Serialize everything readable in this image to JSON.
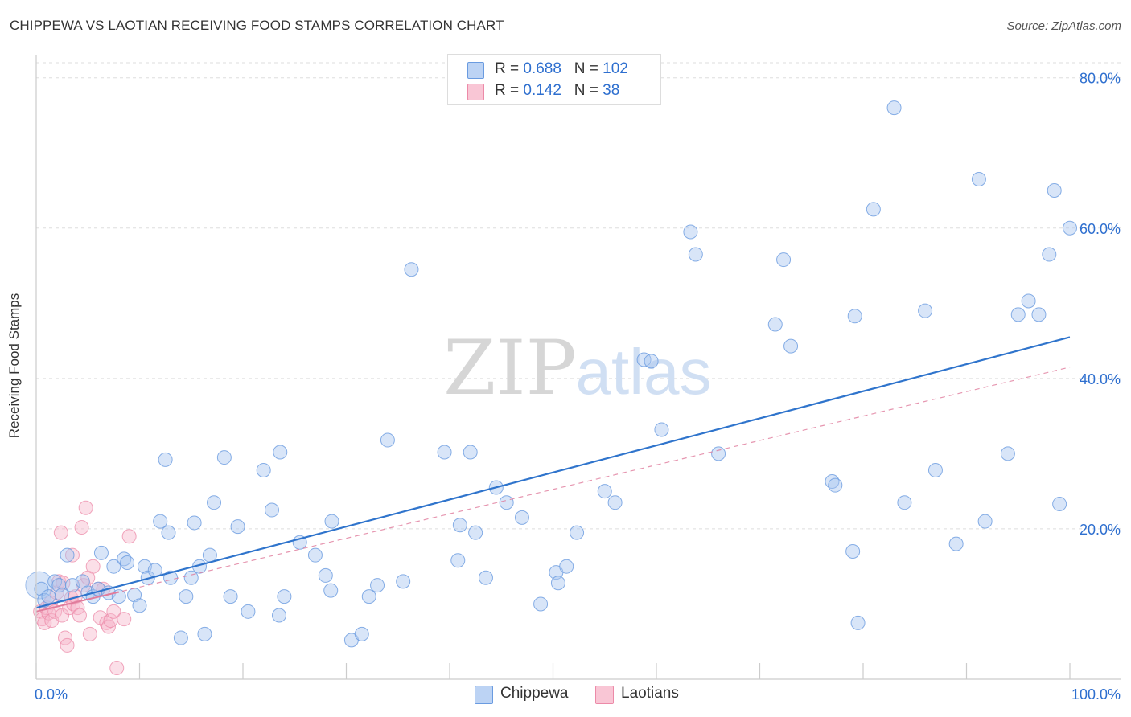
{
  "title": "CHIPPEWA VS LAOTIAN RECEIVING FOOD STAMPS CORRELATION CHART",
  "source": "Source: ZipAtlas.com",
  "watermark": {
    "zip": "ZIP",
    "atlas": "atlas"
  },
  "legend": {
    "rows": [
      {
        "r_label": "R = ",
        "r_value": "0.688",
        "n_label": "N = ",
        "n_value": "102"
      },
      {
        "r_label": "R = ",
        "r_value": " 0.142",
        "n_label": "N = ",
        "n_value": " 38"
      }
    ]
  },
  "colors": {
    "chippewa_fill": "#a9c6f0",
    "chippewa_stroke": "#6a9be0",
    "chippewa_line": "#2f74cc",
    "laotian_fill": "#f7b8cb",
    "laotian_stroke": "#ec8aa8",
    "laotian_line": "#e07c9c",
    "tick_label": "#2e6fcf",
    "grid": "#dddddd"
  },
  "chart_data": {
    "type": "scatter",
    "title": "CHIPPEWA VS LAOTIAN RECEIVING FOOD STAMPS CORRELATION CHART",
    "xlabel": "",
    "ylabel": "Receiving Food Stamps",
    "xlim": [
      0,
      100
    ],
    "ylim": [
      0,
      82
    ],
    "x_tick_labels": [
      "0.0%",
      "100.0%"
    ],
    "y_ticks": [
      20,
      40,
      60,
      80
    ],
    "y_tick_labels": [
      "20.0%",
      "40.0%",
      "60.0%",
      "80.0%"
    ],
    "grid": true,
    "series": [
      {
        "name": "Chippewa",
        "r": 0.688,
        "n": 102,
        "trend": {
          "x": [
            0,
            100
          ],
          "y": [
            9.5,
            45.5
          ]
        },
        "points": [
          [
            0.5,
            12.0
          ],
          [
            0.8,
            10.5
          ],
          [
            1.2,
            11.0
          ],
          [
            1.8,
            13.0
          ],
          [
            2.2,
            12.5
          ],
          [
            2.5,
            11.2
          ],
          [
            3.0,
            16.5
          ],
          [
            3.5,
            12.5
          ],
          [
            4.5,
            13.0
          ],
          [
            5.0,
            11.5
          ],
          [
            5.5,
            11.0
          ],
          [
            6.0,
            12.0
          ],
          [
            6.3,
            16.8
          ],
          [
            7.0,
            11.5
          ],
          [
            7.5,
            15.0
          ],
          [
            8.0,
            11.0
          ],
          [
            8.5,
            16.0
          ],
          [
            8.8,
            15.5
          ],
          [
            9.5,
            11.2
          ],
          [
            10.0,
            9.8
          ],
          [
            10.5,
            15.0
          ],
          [
            10.8,
            13.5
          ],
          [
            11.5,
            14.5
          ],
          [
            12.0,
            21.0
          ],
          [
            12.5,
            29.2
          ],
          [
            12.8,
            19.5
          ],
          [
            13.0,
            13.5
          ],
          [
            14.0,
            5.5
          ],
          [
            14.5,
            11.0
          ],
          [
            15.0,
            13.5
          ],
          [
            15.3,
            20.8
          ],
          [
            15.8,
            15.0
          ],
          [
            16.3,
            6.0
          ],
          [
            16.8,
            16.5
          ],
          [
            17.2,
            23.5
          ],
          [
            18.2,
            29.5
          ],
          [
            18.8,
            11.0
          ],
          [
            19.5,
            20.3
          ],
          [
            20.5,
            9.0
          ],
          [
            22.0,
            27.8
          ],
          [
            22.8,
            22.5
          ],
          [
            23.5,
            8.5
          ],
          [
            23.6,
            30.2
          ],
          [
            24.0,
            11.0
          ],
          [
            25.5,
            18.2
          ],
          [
            27.0,
            16.5
          ],
          [
            28.0,
            13.8
          ],
          [
            28.5,
            11.8
          ],
          [
            28.6,
            21.0
          ],
          [
            30.5,
            5.2
          ],
          [
            31.5,
            6.0
          ],
          [
            32.2,
            11.0
          ],
          [
            33.0,
            12.5
          ],
          [
            34.0,
            31.8
          ],
          [
            35.5,
            13.0
          ],
          [
            36.3,
            54.5
          ],
          [
            39.5,
            30.2
          ],
          [
            40.8,
            15.8
          ],
          [
            41.0,
            20.5
          ],
          [
            42.0,
            30.2
          ],
          [
            42.5,
            19.5
          ],
          [
            43.5,
            13.5
          ],
          [
            44.5,
            25.5
          ],
          [
            45.5,
            23.5
          ],
          [
            47.0,
            21.5
          ],
          [
            48.8,
            10.0
          ],
          [
            50.3,
            14.2
          ],
          [
            50.5,
            12.8
          ],
          [
            51.3,
            15.0
          ],
          [
            52.3,
            19.5
          ],
          [
            55.0,
            25.0
          ],
          [
            56.0,
            23.5
          ],
          [
            58.8,
            42.5
          ],
          [
            59.5,
            42.3
          ],
          [
            60.5,
            33.2
          ],
          [
            63.3,
            59.5
          ],
          [
            63.8,
            56.5
          ],
          [
            66.0,
            30.0
          ],
          [
            71.5,
            47.2
          ],
          [
            72.3,
            55.8
          ],
          [
            73.0,
            44.3
          ],
          [
            77.0,
            26.3
          ],
          [
            77.3,
            25.8
          ],
          [
            79.0,
            17.0
          ],
          [
            79.2,
            48.3
          ],
          [
            79.5,
            7.5
          ],
          [
            81.0,
            62.5
          ],
          [
            83.0,
            76.0
          ],
          [
            84.0,
            23.5
          ],
          [
            86.0,
            49.0
          ],
          [
            87.0,
            27.8
          ],
          [
            89.0,
            18.0
          ],
          [
            91.2,
            66.5
          ],
          [
            91.8,
            21.0
          ],
          [
            94.0,
            30.0
          ],
          [
            95.0,
            48.5
          ],
          [
            96.0,
            50.3
          ],
          [
            97.0,
            48.5
          ],
          [
            98.0,
            56.5
          ],
          [
            98.5,
            65.0
          ],
          [
            99.0,
            23.3
          ],
          [
            100.0,
            60.0
          ]
        ]
      },
      {
        "name": "Laotians",
        "r": 0.142,
        "n": 38,
        "trend": {
          "x": [
            0,
            100
          ],
          "y": [
            9.0,
            41.5
          ]
        },
        "points": [
          [
            0.4,
            9.0
          ],
          [
            0.6,
            8.0
          ],
          [
            0.8,
            7.5
          ],
          [
            1.0,
            9.5
          ],
          [
            1.2,
            8.8
          ],
          [
            1.4,
            10.2
          ],
          [
            1.5,
            7.8
          ],
          [
            1.8,
            9.0
          ],
          [
            2.0,
            11.5
          ],
          [
            2.2,
            13.0
          ],
          [
            2.4,
            19.5
          ],
          [
            2.5,
            8.5
          ],
          [
            2.6,
            12.8
          ],
          [
            2.8,
            5.5
          ],
          [
            3.0,
            4.5
          ],
          [
            3.2,
            9.5
          ],
          [
            3.4,
            10.8
          ],
          [
            3.5,
            16.5
          ],
          [
            3.6,
            10.0
          ],
          [
            3.8,
            11.0
          ],
          [
            4.0,
            9.5
          ],
          [
            4.2,
            8.5
          ],
          [
            4.4,
            20.2
          ],
          [
            4.6,
            12.5
          ],
          [
            4.8,
            22.8
          ],
          [
            5.0,
            13.5
          ],
          [
            5.2,
            6.0
          ],
          [
            5.5,
            15.0
          ],
          [
            6.0,
            12.0
          ],
          [
            6.2,
            8.2
          ],
          [
            6.5,
            12.0
          ],
          [
            6.8,
            7.5
          ],
          [
            7.0,
            7.0
          ],
          [
            7.2,
            7.8
          ],
          [
            7.5,
            9.0
          ],
          [
            7.8,
            1.5
          ],
          [
            8.5,
            8.0
          ],
          [
            9.0,
            19.0
          ]
        ]
      }
    ]
  },
  "bottom_legend": {
    "chippewa": "Chippewa",
    "laotians": "Laotians"
  }
}
